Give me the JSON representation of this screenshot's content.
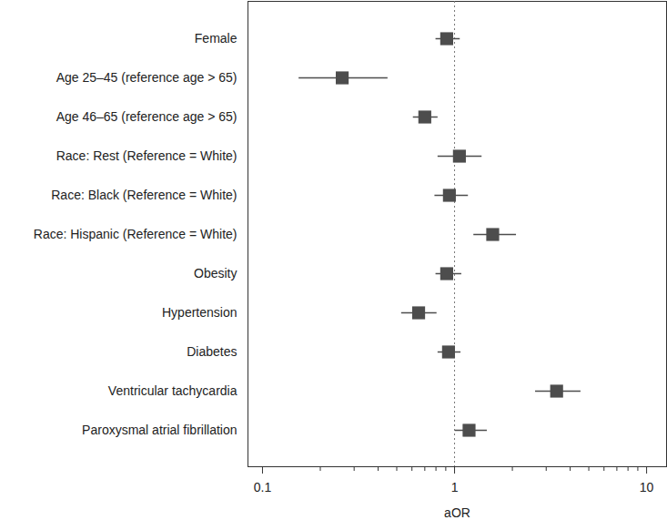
{
  "chart_data": {
    "type": "forest",
    "categories": [
      "Female",
      "Age 25–45 (reference age > 65)",
      "Age 46–65 (reference age > 65)",
      "Race: Rest (Reference = White)",
      "Race: Black (Reference = White)",
      "Race: Hispanic (Reference = White)",
      "Obesity",
      "Hypertension",
      "Diabetes",
      "Ventricular tachycardia",
      "Paroxysmal atrial fibrillation"
    ],
    "values": [
      0.91,
      0.26,
      0.7,
      1.06,
      0.94,
      1.58,
      0.91,
      0.65,
      0.93,
      3.4,
      1.19
    ],
    "lower": [
      0.8,
      0.155,
      0.61,
      0.82,
      0.79,
      1.26,
      0.8,
      0.53,
      0.82,
      2.64,
      1.01
    ],
    "upper": [
      1.07,
      0.45,
      0.82,
      1.39,
      1.18,
      2.1,
      1.09,
      0.81,
      1.08,
      4.55,
      1.48
    ],
    "xlabel": "aOR",
    "log": "x",
    "xlim": [
      0.084,
      12.7
    ],
    "xticks": [
      0.1,
      1,
      10
    ],
    "xticks_minor": [
      0.2,
      0.3,
      0.4,
      0.5,
      0.6,
      0.7,
      0.8,
      0.9,
      2,
      3,
      4,
      5,
      6,
      7,
      8,
      9
    ],
    "reference_x": 1,
    "color": "#4d4d4d"
  }
}
